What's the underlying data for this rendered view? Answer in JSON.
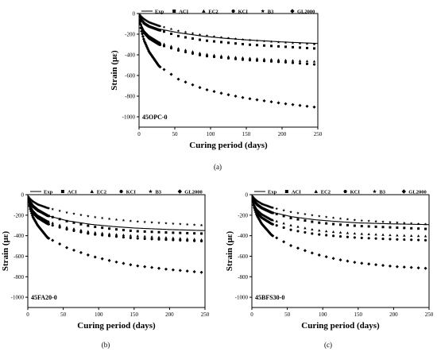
{
  "captions": [
    "(a)",
    "(b)",
    "(c)"
  ],
  "legend": {
    "entries": [
      {
        "label": "Exp",
        "marker": "line"
      },
      {
        "label": "ACI",
        "marker": "square"
      },
      {
        "label": "EC2",
        "marker": "triangle"
      },
      {
        "label": "KCI",
        "marker": "circle"
      },
      {
        "label": "B3",
        "marker": "star"
      },
      {
        "label": "GL2000",
        "marker": "diamond"
      }
    ]
  },
  "chart_data": [
    {
      "type": "line",
      "annotation": "45OPC-0",
      "caption": "(a)",
      "xlabel": "Curing period (days)",
      "ylabel": "Strain (με)",
      "xlim": [
        0,
        250
      ],
      "ylim": [
        -1100,
        0
      ],
      "xticks": [
        0,
        50,
        100,
        150,
        200,
        250
      ],
      "yticks": [
        0,
        -200,
        -400,
        -600,
        -800,
        -1000
      ],
      "grid": false,
      "legend_position": "top",
      "series": [
        {
          "name": "Exp",
          "marker": "line",
          "x": [
            0,
            1,
            3,
            7,
            14,
            28,
            56,
            90,
            120,
            150,
            200,
            250
          ],
          "values": [
            0,
            -38,
            -68,
            -95,
            -122,
            -150,
            -187,
            -220,
            -240,
            -255,
            -275,
            -290
          ]
        },
        {
          "name": "ACI",
          "marker": "square",
          "x": [
            1,
            3,
            7,
            14,
            28,
            56,
            90,
            120,
            150,
            200,
            250
          ],
          "values": [
            -25,
            -55,
            -95,
            -125,
            -160,
            -220,
            -260,
            -280,
            -300,
            -320,
            -340
          ]
        },
        {
          "name": "EC2",
          "marker": "triangle",
          "x": [
            1,
            3,
            7,
            14,
            28,
            56,
            90,
            120,
            150,
            200,
            250
          ],
          "values": [
            -60,
            -115,
            -170,
            -220,
            -280,
            -340,
            -390,
            -415,
            -430,
            -450,
            -465
          ]
        },
        {
          "name": "KCI",
          "marker": "circle",
          "x": [
            1,
            3,
            7,
            14,
            28,
            56,
            90,
            120,
            150,
            200,
            250
          ],
          "values": [
            -65,
            -125,
            -185,
            -240,
            -300,
            -360,
            -410,
            -430,
            -450,
            -470,
            -495
          ]
        },
        {
          "name": "B3",
          "marker": "star",
          "x": [
            1,
            3,
            7,
            14,
            28,
            56,
            90,
            120,
            150,
            200,
            250
          ],
          "values": [
            -12,
            -30,
            -55,
            -85,
            -120,
            -170,
            -210,
            -235,
            -255,
            -280,
            -300
          ]
        },
        {
          "name": "GL2000",
          "marker": "diamond",
          "x": [
            1,
            3,
            7,
            14,
            28,
            56,
            90,
            120,
            150,
            200,
            250
          ],
          "values": [
            -80,
            -160,
            -260,
            -370,
            -510,
            -640,
            -730,
            -780,
            -820,
            -870,
            -910
          ]
        }
      ]
    },
    {
      "type": "line",
      "annotation": "45FA20-0",
      "caption": "(b)",
      "xlabel": "Curing period (days)",
      "ylabel": "Strain (με)",
      "xlim": [
        0,
        250
      ],
      "ylim": [
        -1100,
        0
      ],
      "xticks": [
        0,
        50,
        100,
        150,
        200,
        250
      ],
      "yticks": [
        0,
        -200,
        -400,
        -600,
        -800,
        -1000
      ],
      "grid": false,
      "legend_position": "top",
      "series": [
        {
          "name": "Exp",
          "marker": "line",
          "x": [
            0,
            1,
            3,
            7,
            14,
            28,
            56,
            90,
            120,
            150,
            200,
            250
          ],
          "values": [
            0,
            -40,
            -80,
            -125,
            -165,
            -205,
            -255,
            -290,
            -310,
            -325,
            -340,
            -350
          ]
        },
        {
          "name": "ACI",
          "marker": "square",
          "x": [
            1,
            3,
            7,
            14,
            28,
            56,
            90,
            120,
            150,
            200,
            250
          ],
          "values": [
            -30,
            -65,
            -110,
            -150,
            -205,
            -260,
            -310,
            -335,
            -355,
            -370,
            -380
          ]
        },
        {
          "name": "EC2",
          "marker": "triangle",
          "x": [
            1,
            3,
            7,
            14,
            28,
            56,
            90,
            120,
            150,
            200,
            250
          ],
          "values": [
            -50,
            -100,
            -155,
            -205,
            -260,
            -320,
            -365,
            -385,
            -400,
            -420,
            -440
          ]
        },
        {
          "name": "KCI",
          "marker": "circle",
          "x": [
            1,
            3,
            7,
            14,
            28,
            56,
            90,
            120,
            150,
            200,
            250
          ],
          "values": [
            -55,
            -115,
            -175,
            -225,
            -285,
            -340,
            -385,
            -405,
            -425,
            -440,
            -455
          ]
        },
        {
          "name": "B3",
          "marker": "star",
          "x": [
            1,
            3,
            7,
            14,
            28,
            56,
            90,
            120,
            150,
            200,
            250
          ],
          "values": [
            -20,
            -40,
            -65,
            -95,
            -130,
            -175,
            -215,
            -240,
            -260,
            -280,
            -300
          ]
        },
        {
          "name": "GL2000",
          "marker": "diamond",
          "x": [
            1,
            3,
            7,
            14,
            28,
            56,
            90,
            120,
            150,
            200,
            250
          ],
          "values": [
            -60,
            -130,
            -215,
            -300,
            -420,
            -520,
            -600,
            -650,
            -690,
            -730,
            -760
          ]
        }
      ]
    },
    {
      "type": "line",
      "annotation": "45BFS30-0",
      "caption": "(c)",
      "xlabel": "Curing period (days)",
      "ylabel": "Strain (με)",
      "xlim": [
        0,
        250
      ],
      "ylim": [
        -1100,
        0
      ],
      "xticks": [
        0,
        50,
        100,
        150,
        200,
        250
      ],
      "yticks": [
        0,
        -200,
        -400,
        -600,
        -800,
        -1000
      ],
      "grid": false,
      "legend_position": "top",
      "series": [
        {
          "name": "Exp",
          "marker": "line",
          "x": [
            0,
            1,
            3,
            7,
            14,
            28,
            56,
            90,
            120,
            150,
            200,
            250
          ],
          "values": [
            0,
            -35,
            -65,
            -100,
            -135,
            -170,
            -215,
            -245,
            -262,
            -275,
            -285,
            -292
          ]
        },
        {
          "name": "ACI",
          "marker": "square",
          "x": [
            1,
            3,
            7,
            14,
            28,
            56,
            90,
            120,
            150,
            200,
            250
          ],
          "values": [
            -25,
            -55,
            -95,
            -130,
            -175,
            -230,
            -270,
            -290,
            -305,
            -320,
            -335
          ]
        },
        {
          "name": "EC2",
          "marker": "triangle",
          "x": [
            1,
            3,
            7,
            14,
            28,
            56,
            90,
            120,
            150,
            200,
            250
          ],
          "values": [
            -45,
            -95,
            -145,
            -190,
            -245,
            -300,
            -345,
            -365,
            -380,
            -395,
            -405
          ]
        },
        {
          "name": "KCI",
          "marker": "circle",
          "x": [
            1,
            3,
            7,
            14,
            28,
            56,
            90,
            120,
            150,
            200,
            250
          ],
          "values": [
            -55,
            -115,
            -175,
            -225,
            -285,
            -345,
            -385,
            -405,
            -420,
            -435,
            -445
          ]
        },
        {
          "name": "B3",
          "marker": "star",
          "x": [
            1,
            3,
            7,
            14,
            28,
            56,
            90,
            120,
            150,
            200,
            250
          ],
          "values": [
            -15,
            -35,
            -60,
            -90,
            -125,
            -170,
            -205,
            -230,
            -250,
            -270,
            -290
          ]
        },
        {
          "name": "GL2000",
          "marker": "diamond",
          "x": [
            1,
            3,
            7,
            14,
            28,
            56,
            90,
            120,
            150,
            200,
            250
          ],
          "values": [
            -55,
            -120,
            -200,
            -285,
            -395,
            -500,
            -580,
            -630,
            -665,
            -700,
            -720
          ]
        }
      ]
    }
  ]
}
